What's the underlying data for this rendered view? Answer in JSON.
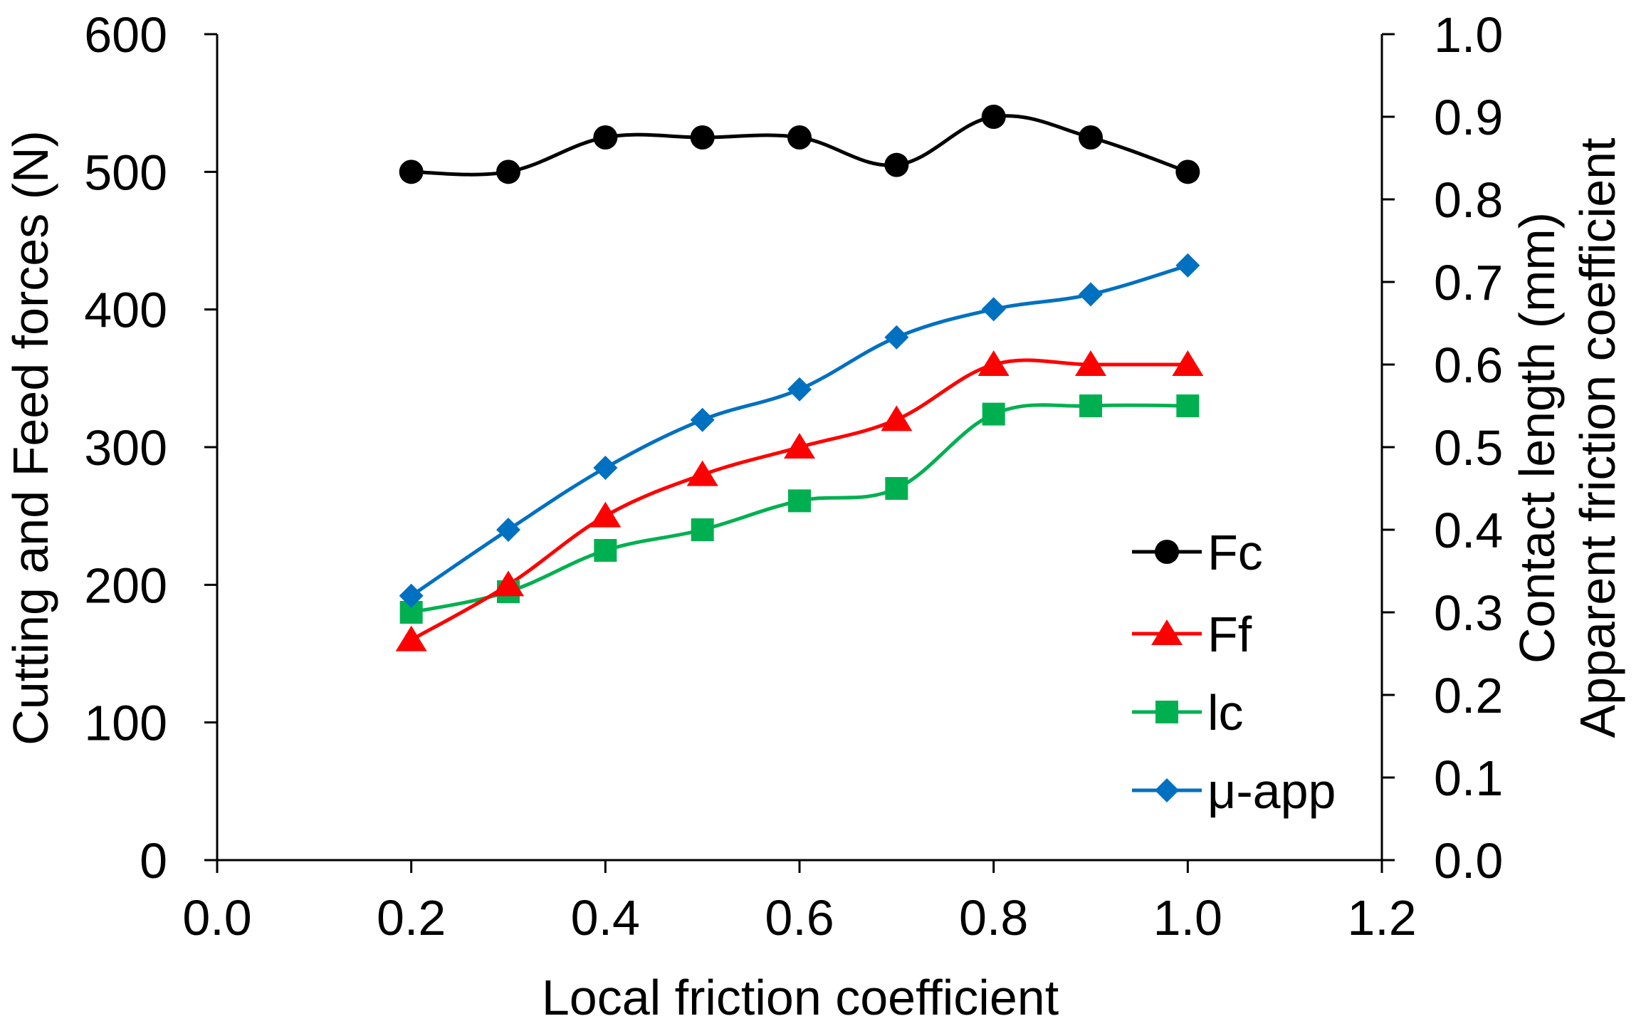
{
  "chart_data": {
    "type": "line",
    "title": "",
    "xlabel": "Local friction coefficient",
    "ylabel": "Cutting and Feed forces (N)",
    "y2label_line1": "Contact length (mm)",
    "y2label_line2": "Apparent friction coefficient",
    "xlim": [
      0.0,
      1.2
    ],
    "ylim": [
      0,
      600
    ],
    "y2lim": [
      0.0,
      1.0
    ],
    "xticks": [
      "0.0",
      "0.2",
      "0.4",
      "0.6",
      "0.8",
      "1.0",
      "1.2"
    ],
    "xtick_values": [
      0.0,
      0.2,
      0.4,
      0.6,
      0.8,
      1.0,
      1.2
    ],
    "yticks": [
      "0",
      "100",
      "200",
      "300",
      "400",
      "500",
      "600"
    ],
    "ytick_values": [
      0,
      100,
      200,
      300,
      400,
      500,
      600
    ],
    "y2ticks": [
      "0.0",
      "0.1",
      "0.2",
      "0.3",
      "0.4",
      "0.5",
      "0.6",
      "0.7",
      "0.8",
      "0.9",
      "1.0"
    ],
    "y2tick_values": [
      0.0,
      0.1,
      0.2,
      0.3,
      0.4,
      0.5,
      0.6,
      0.7,
      0.8,
      0.9,
      1.0
    ],
    "grid": false,
    "legend_position": "right-inside",
    "x": [
      0.2,
      0.3,
      0.4,
      0.5,
      0.6,
      0.7,
      0.8,
      0.9,
      1.0
    ],
    "series": [
      {
        "name": "Fc",
        "axis": "left",
        "color": "#000000",
        "marker": "circle",
        "values": [
          500,
          500,
          525,
          525,
          525,
          505,
          540,
          525,
          500
        ]
      },
      {
        "name": "Ff",
        "axis": "left",
        "color": "#ff0000",
        "marker": "triangle",
        "values": [
          160,
          200,
          250,
          280,
          300,
          320,
          360,
          360,
          360
        ]
      },
      {
        "name": "lc",
        "axis": "right",
        "color": "#00b050",
        "marker": "square",
        "values": [
          0.3,
          0.325,
          0.375,
          0.4,
          0.435,
          0.45,
          0.54,
          0.55,
          0.55
        ]
      },
      {
        "name": "μ-app",
        "axis": "right",
        "color": "#0070c0",
        "marker": "diamond",
        "values": [
          0.32,
          0.4,
          0.475,
          0.533,
          0.57,
          0.633,
          0.667,
          0.685,
          0.72
        ]
      }
    ]
  }
}
